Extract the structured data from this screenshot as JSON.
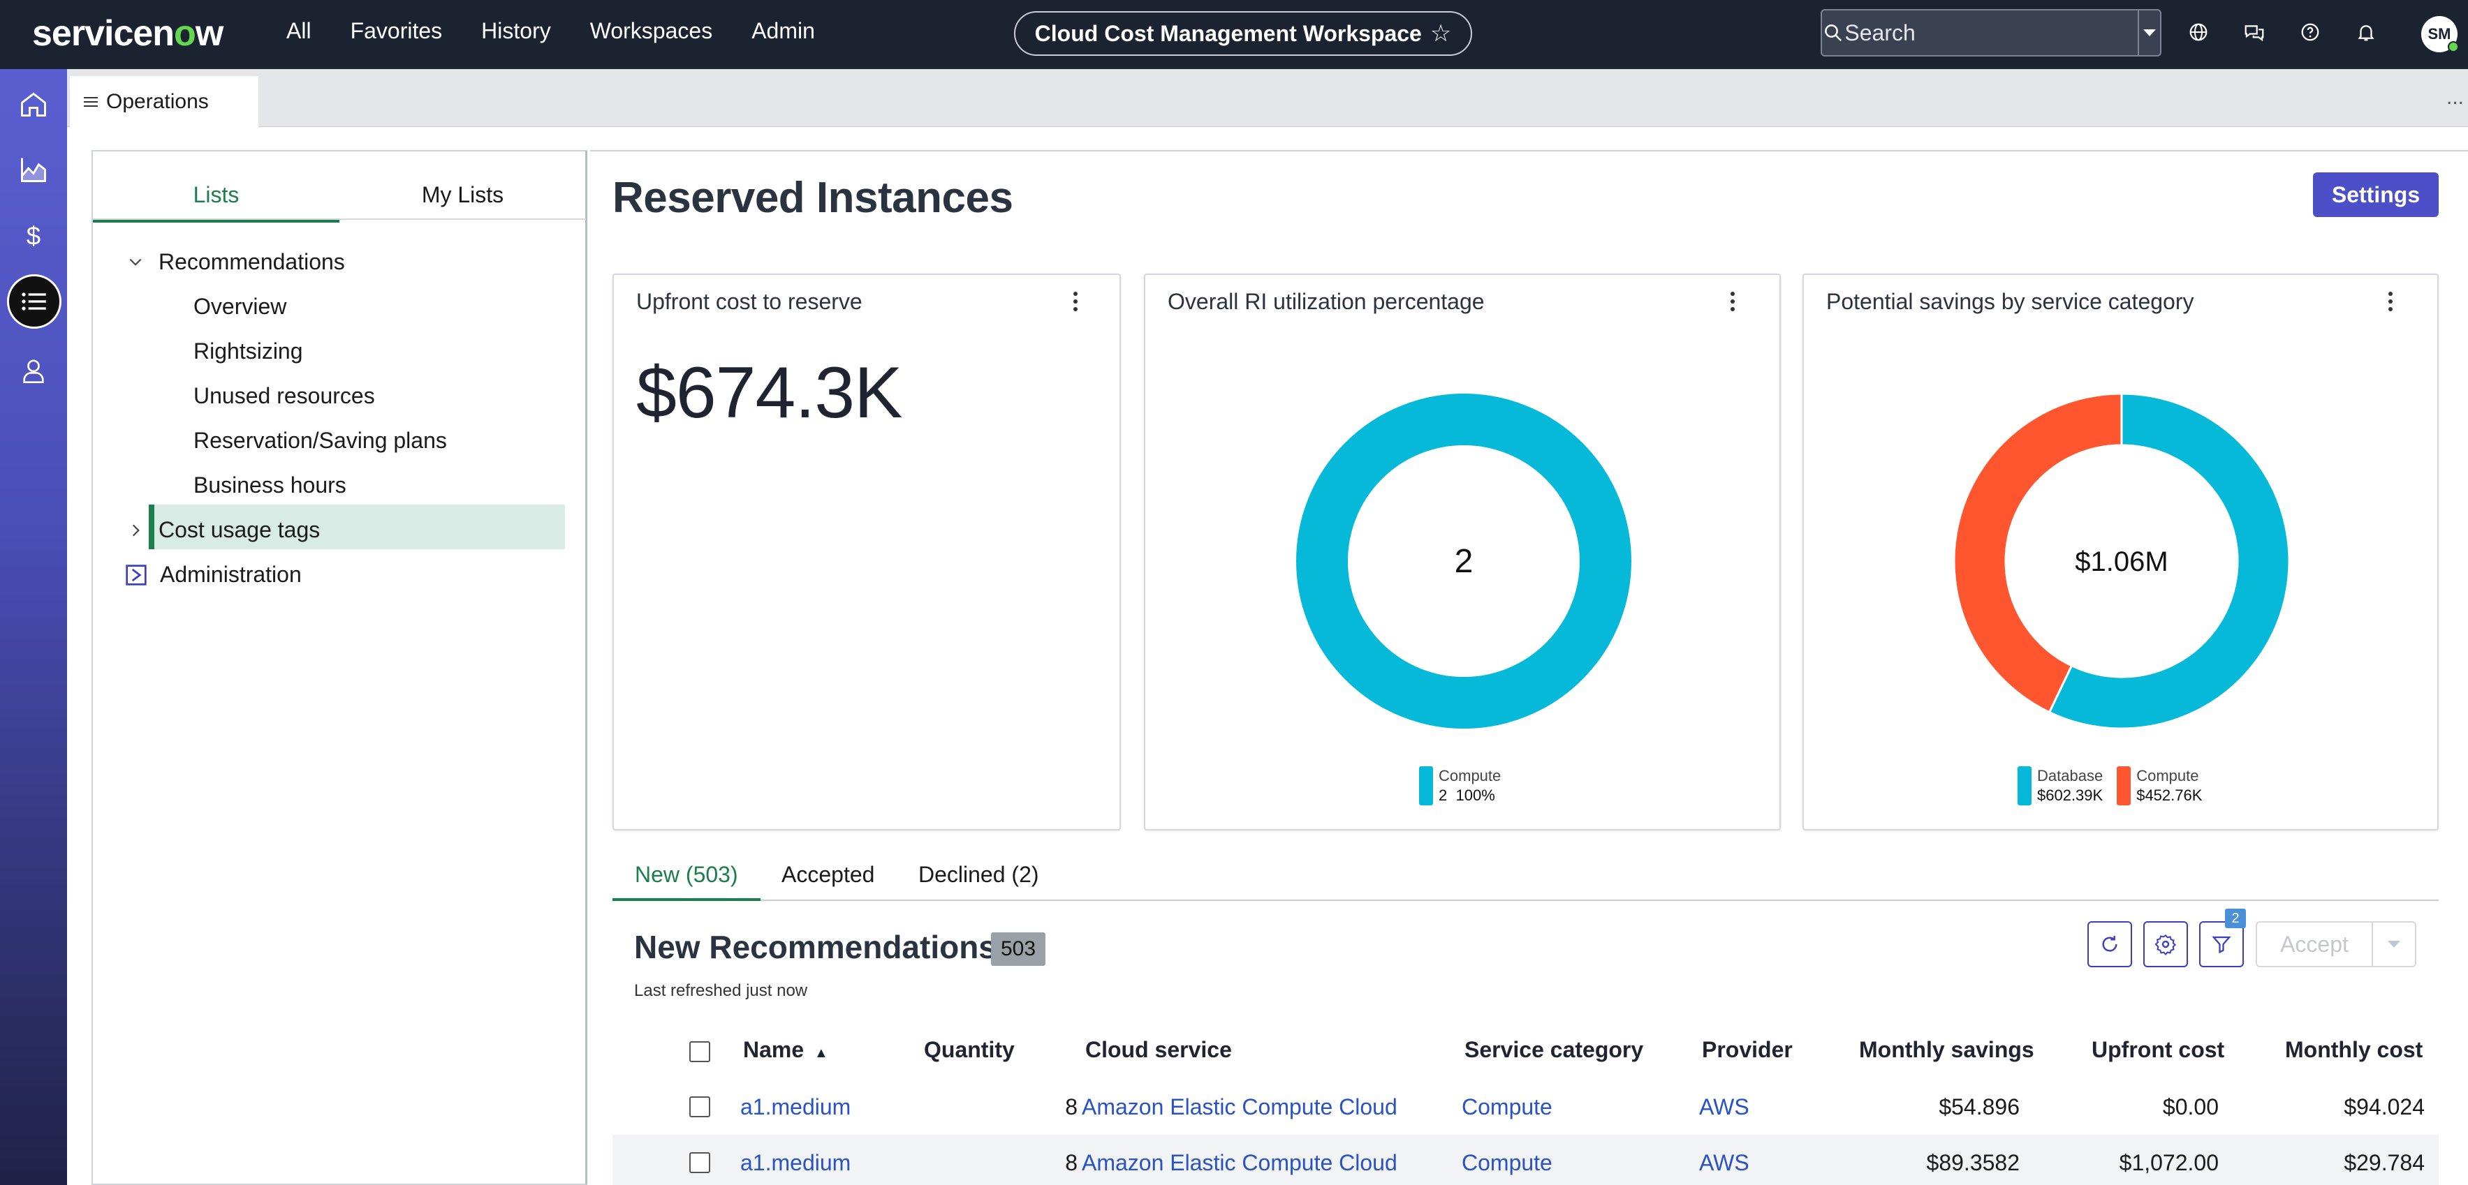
{
  "topnav": {
    "logo_text_a": "servicen",
    "logo_text_o": "o",
    "logo_text_b": "w",
    "links": [
      "All",
      "Favorites",
      "History",
      "Workspaces",
      "Admin"
    ],
    "workspace_title": "Cloud Cost Management Workspace",
    "workspace_star": "☆",
    "search_placeholder": "Search",
    "user_initials": "SM",
    "icons": [
      "globe-icon",
      "chat-icon",
      "help-icon",
      "bell-icon"
    ]
  },
  "rail": {
    "items": [
      "home-icon",
      "analytics-icon",
      "dollar-icon",
      "list-icon",
      "user-icon"
    ],
    "active": "list-icon"
  },
  "tabstrip": {
    "tab_label": "Operations",
    "more": "..."
  },
  "left_panel": {
    "tabs": [
      "Lists",
      "My Lists"
    ],
    "active_tab": "Lists",
    "tree": {
      "recommendations": "Recommendations",
      "children": [
        "Overview",
        "Rightsizing",
        "Unused resources",
        "Reservation/Saving plans",
        "Business hours"
      ],
      "selected": "Reservation/Saving plans",
      "cost_usage_tags": "Cost usage tags",
      "administration": "Administration"
    }
  },
  "main": {
    "title": "Reserved Instances",
    "settings_label": "Settings",
    "cards": {
      "upfront": {
        "title": "Upfront cost to reserve",
        "value": "$674.3K"
      },
      "utilization": {
        "title": "Overall RI utilization percentage",
        "center": "2",
        "legend_name": "Compute",
        "legend_value": "2",
        "legend_pct": "100%"
      },
      "savings": {
        "title": "Potential savings by service category",
        "center": "$1.06M",
        "legend": [
          {
            "name": "Database",
            "value": "$602.39K",
            "color": "#06b9d9"
          },
          {
            "name": "Compute",
            "value": "$452.76K",
            "color": "#ff5630"
          }
        ]
      }
    },
    "subtabs": [
      "New (503)",
      "Accepted",
      "Declined (2)"
    ],
    "active_subtab": "New (503)",
    "recommendations": {
      "title": "New Recommendations",
      "count": "503",
      "refreshed": "Last refreshed just now",
      "filter_count": "2",
      "accept_label": "Accept"
    },
    "table": {
      "columns": [
        "Name",
        "Quantity",
        "Cloud service",
        "Service category",
        "Provider",
        "Monthly savings",
        "Upfront cost",
        "Monthly cost"
      ],
      "sort_indicator": "▲",
      "rows": [
        {
          "name": "a1.medium",
          "quantity": "8",
          "cloud_service": "Amazon Elastic Compute Cloud",
          "service_category": "Compute",
          "provider": "AWS",
          "monthly_savings": "$54.896",
          "upfront_cost": "$0.00",
          "monthly_cost": "$94.024"
        },
        {
          "name": "a1.medium",
          "quantity": "8",
          "cloud_service": "Amazon Elastic Compute Cloud",
          "service_category": "Compute",
          "provider": "AWS",
          "monthly_savings": "$89.3582",
          "upfront_cost": "$1,072.00",
          "monthly_cost": "$29.784"
        }
      ]
    }
  },
  "chart_data": [
    {
      "type": "pie",
      "categories": [
        "Compute"
      ],
      "values": [
        2
      ],
      "percent": [
        100
      ],
      "colors": [
        "#06b9d9"
      ],
      "center_label": "2"
    },
    {
      "type": "pie",
      "categories": [
        "Database",
        "Compute"
      ],
      "values": [
        602.39,
        452.76
      ],
      "value_labels": [
        "$602.39K",
        "$452.76K"
      ],
      "colors": [
        "#06b9d9",
        "#ff5630"
      ],
      "center_label": "$1.06M"
    }
  ]
}
